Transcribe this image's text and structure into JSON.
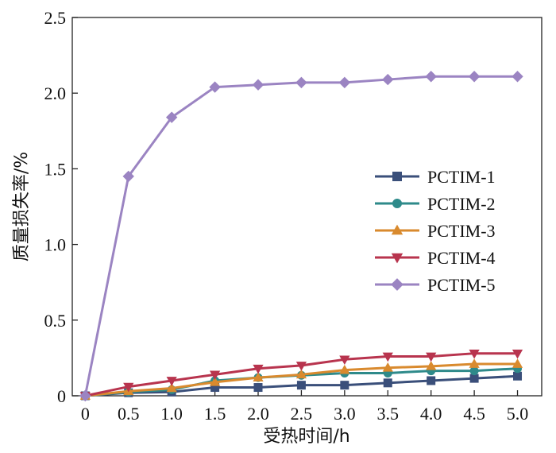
{
  "chart_data": {
    "type": "line",
    "title": "",
    "xlabel": "受热时间/h",
    "ylabel": "质量损失率/%",
    "x": [
      0,
      0.5,
      1.0,
      1.5,
      2.0,
      2.5,
      3.0,
      3.5,
      4.0,
      4.5,
      5.0
    ],
    "x_tick_labels": [
      "0",
      "0.5",
      "1.0",
      "1.5",
      "2.0",
      "2.5",
      "3.0",
      "3.5",
      "4.0",
      "4.5",
      "5.0"
    ],
    "y_ticks": [
      0,
      0.5,
      1.0,
      1.5,
      2.0,
      2.5
    ],
    "y_tick_labels": [
      "0",
      "0.5",
      "1.0",
      "1.5",
      "2.0",
      "2.5"
    ],
    "xlim": [
      -0.15,
      5.28
    ],
    "ylim": [
      0,
      2.5
    ],
    "grid": false,
    "legend_position": "center-right",
    "series": [
      {
        "name": "PCTIM-1",
        "color": "#3a4f7a",
        "marker": "square",
        "values": [
          0,
          0.02,
          0.025,
          0.055,
          0.055,
          0.07,
          0.07,
          0.085,
          0.1,
          0.115,
          0.13
        ]
      },
      {
        "name": "PCTIM-2",
        "color": "#2e8a8a",
        "marker": "circle",
        "values": [
          0,
          0.025,
          0.04,
          0.1,
          0.12,
          0.135,
          0.15,
          0.15,
          0.165,
          0.165,
          0.18
        ]
      },
      {
        "name": "PCTIM-3",
        "color": "#d98a2e",
        "marker": "triangle-up",
        "values": [
          0,
          0.03,
          0.05,
          0.09,
          0.12,
          0.14,
          0.17,
          0.185,
          0.195,
          0.21,
          0.21
        ]
      },
      {
        "name": "PCTIM-4",
        "color": "#b8344e",
        "marker": "triangle-down",
        "values": [
          0,
          0.06,
          0.1,
          0.14,
          0.18,
          0.2,
          0.24,
          0.26,
          0.26,
          0.28,
          0.28
        ]
      },
      {
        "name": "PCTIM-5",
        "color": "#9b84c2",
        "marker": "diamond",
        "values": [
          0,
          1.45,
          1.84,
          2.04,
          2.055,
          2.07,
          2.07,
          2.09,
          2.11,
          2.11,
          2.11
        ]
      }
    ]
  }
}
